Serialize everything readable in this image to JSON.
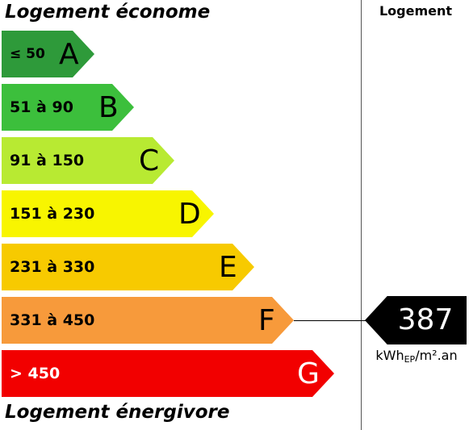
{
  "header": {
    "top_title": "Logement économe",
    "bottom_title": "Logement énergivore",
    "column_header": "Logement"
  },
  "bands": [
    {
      "range": "≤ 50",
      "letter": "A",
      "color": "#2e9a3a",
      "text_color": "#000000"
    },
    {
      "range": "51 à 90",
      "letter": "B",
      "color": "#3cbf3c",
      "text_color": "#000000"
    },
    {
      "range": "91 à 150",
      "letter": "C",
      "color": "#b8ea32",
      "text_color": "#000000"
    },
    {
      "range": "151 à 230",
      "letter": "D",
      "color": "#f8f500",
      "text_color": "#000000"
    },
    {
      "range": "231 à 330",
      "letter": "E",
      "color": "#f7ca00",
      "text_color": "#000000"
    },
    {
      "range": "331 à 450",
      "letter": "F",
      "color": "#f79a3b",
      "text_color": "#000000"
    },
    {
      "range": "> 450",
      "letter": "G",
      "color": "#f20000",
      "text_color": "#ffffff"
    }
  ],
  "indicator": {
    "value": "387",
    "band": "F",
    "unit_main": "kWh",
    "unit_sub": "EP",
    "unit_rest": "/m².an",
    "color": "#000000"
  }
}
